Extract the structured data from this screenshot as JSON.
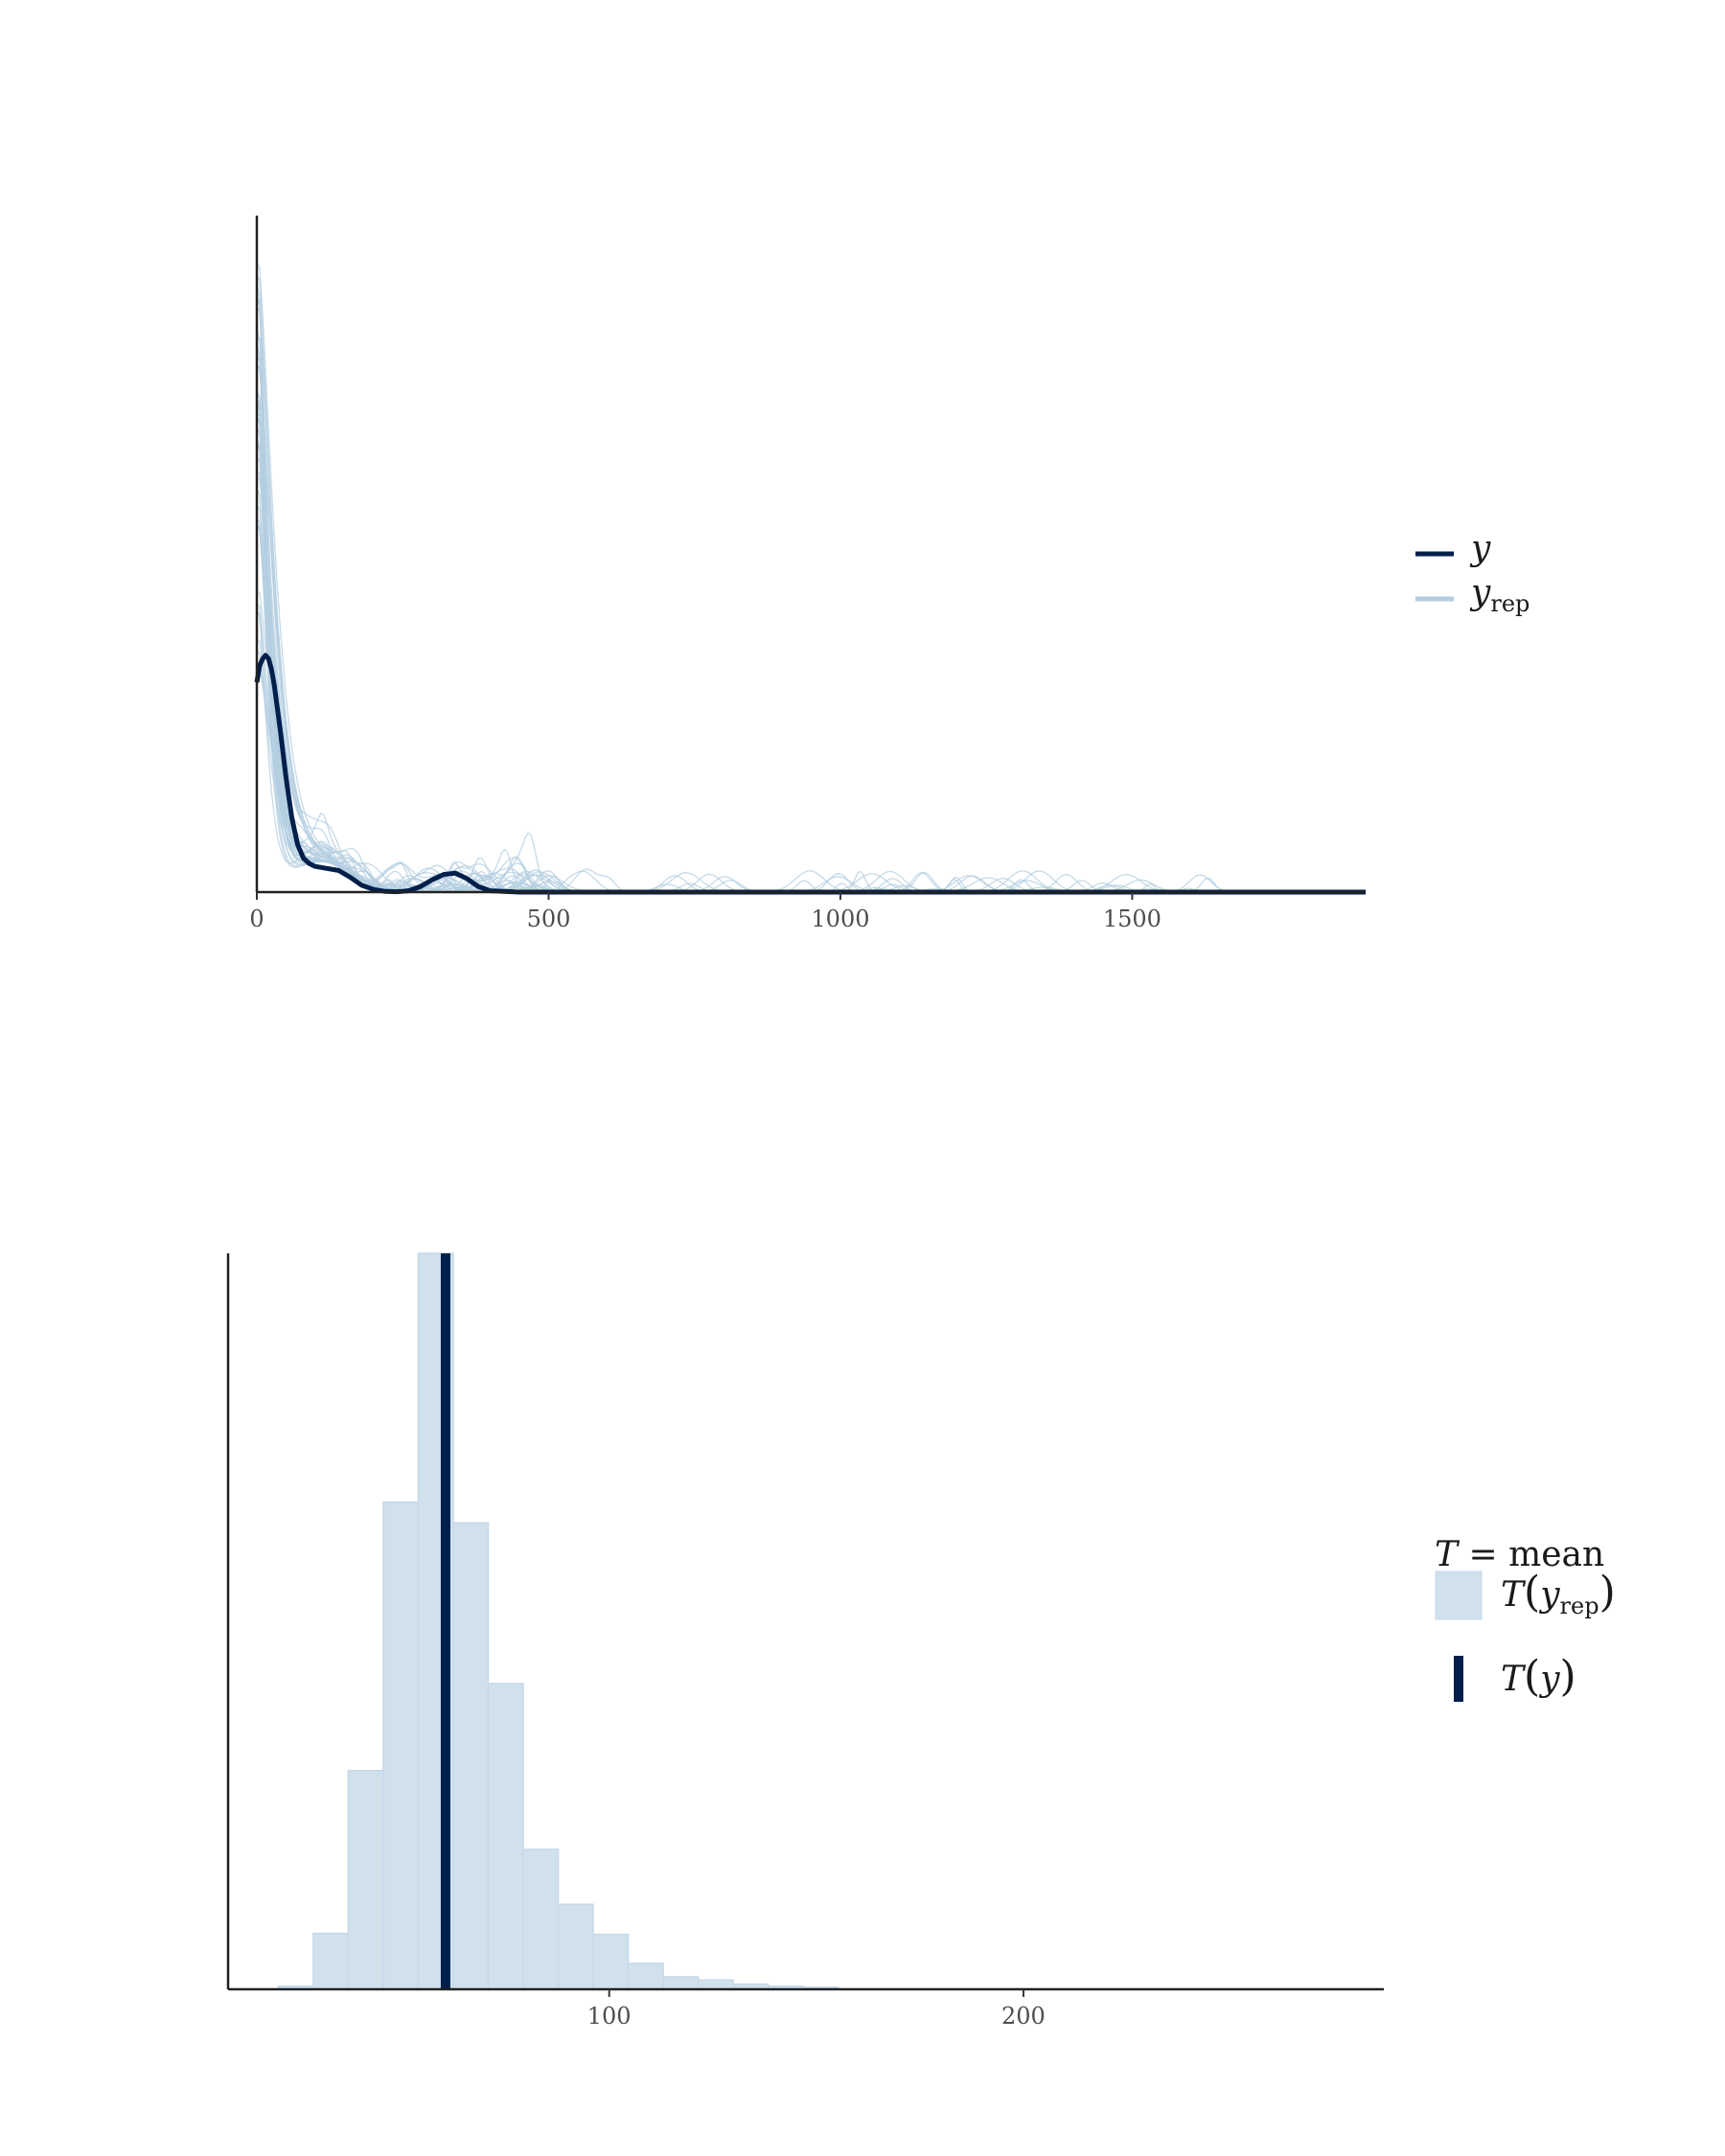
{
  "chart_data": [
    {
      "type": "line",
      "plot": "posterior predictive density overlay",
      "xlim": [
        0,
        1900
      ],
      "ylim": [
        0,
        1.0
      ],
      "y_axis_ticks": "none",
      "grid": false,
      "legend_position": "right",
      "x_tick_labels": [
        "0",
        "500",
        "1000",
        "1500"
      ],
      "x_ticks": [
        0,
        500,
        1000,
        1500
      ],
      "legend": [
        {
          "label": "y",
          "color": "#011f4b"
        },
        {
          "label": "y",
          "subscript": "rep",
          "color": "#b3cde0"
        }
      ],
      "observed": {
        "name": "y",
        "color": "#011f4b",
        "x": [
          0,
          5,
          10,
          15,
          20,
          25,
          30,
          40,
          50,
          60,
          70,
          80,
          90,
          100,
          120,
          140,
          160,
          180,
          200,
          220,
          240,
          260,
          280,
          300,
          320,
          340,
          360,
          380,
          400,
          450,
          500,
          1000,
          1500,
          1900
        ],
        "y": [
          0.31,
          0.335,
          0.345,
          0.35,
          0.345,
          0.33,
          0.305,
          0.24,
          0.17,
          0.11,
          0.07,
          0.05,
          0.042,
          0.038,
          0.035,
          0.032,
          0.022,
          0.01,
          0.004,
          0.001,
          0.0005,
          0.002,
          0.008,
          0.018,
          0.026,
          0.028,
          0.02,
          0.008,
          0.002,
          0,
          0,
          0,
          0,
          0
        ]
      },
      "replicates": {
        "name": "y",
        "subscript": "rep",
        "color": "#b3cde0",
        "count": 40,
        "description": "approximate replicated densities"
      }
    },
    {
      "type": "bar",
      "plot": "posterior predictive test statistic histogram",
      "xlim": [
        8,
        287
      ],
      "y_axis_ticks": "none",
      "grid": false,
      "legend_position": "right",
      "x_tick_labels": [
        "100",
        "200"
      ],
      "x_ticks": [
        100,
        200
      ],
      "legend_title_stat": "mean",
      "legend": [
        {
          "label": "T(y_rep)",
          "color": "#d1e1ec"
        },
        {
          "label": "T(y)",
          "color": "#011f4b"
        }
      ],
      "bin_width": 8.45,
      "bin_starts": [
        20.1,
        28.55,
        37.0,
        45.45,
        53.9,
        62.35,
        70.8,
        79.25,
        87.7,
        96.15,
        104.6,
        113.05,
        121.5,
        129.95,
        138.4,
        146.85
      ],
      "counts": [
        0.3,
        5.4,
        21.1,
        47.0,
        71.0,
        45.0,
        29.5,
        13.5,
        8.2,
        5.3,
        2.5,
        1.2,
        0.9,
        0.5,
        0.3,
        0.2
      ],
      "observed_value": 60.5,
      "observed_color": "#011f4b"
    }
  ]
}
